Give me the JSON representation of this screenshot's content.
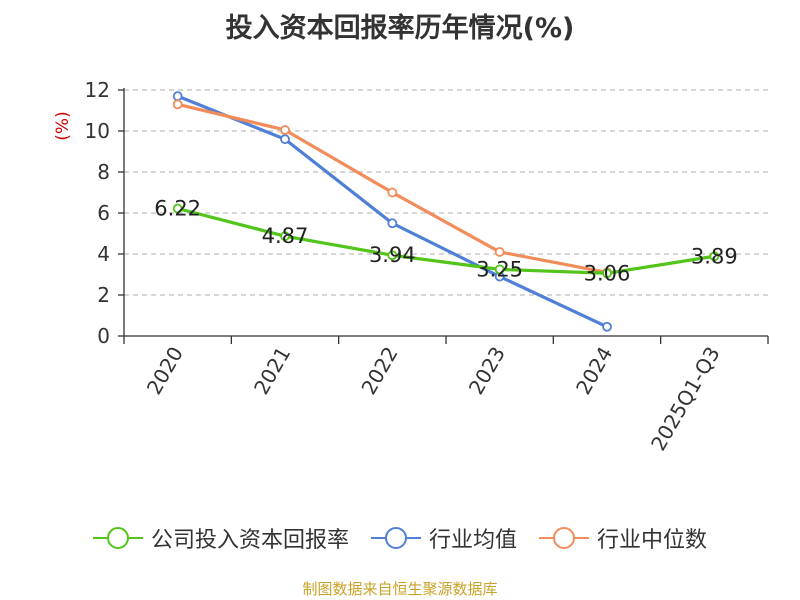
{
  "title": "投入资本回报率历年情况(%)",
  "source": "制图数据来自恒生聚源数据库",
  "chart_data": {
    "type": "line",
    "ylabel": "(%)",
    "ylim": [
      0,
      12
    ],
    "yticks": [
      0,
      2,
      4,
      6,
      8,
      10,
      12
    ],
    "categories": [
      "2020",
      "2021",
      "2022",
      "2023",
      "2024",
      "2025Q1-Q3"
    ],
    "grid": true,
    "legend_position": "bottom",
    "series": [
      {
        "name": "公司投入资本回报率",
        "color": "#52c41a",
        "values": [
          6.22,
          4.87,
          3.94,
          3.25,
          3.06,
          3.89
        ],
        "labels": [
          "6.22",
          "4.87",
          "3.94",
          "3.25",
          "3.06",
          "3.89"
        ]
      },
      {
        "name": "行业均值",
        "color": "#4f7fd6",
        "values": [
          11.7,
          9.6,
          5.5,
          2.9,
          0.45,
          null
        ]
      },
      {
        "name": "行业中位数",
        "color": "#f28c5a",
        "values": [
          11.3,
          10.05,
          7.0,
          4.1,
          3.1,
          null
        ]
      }
    ]
  }
}
